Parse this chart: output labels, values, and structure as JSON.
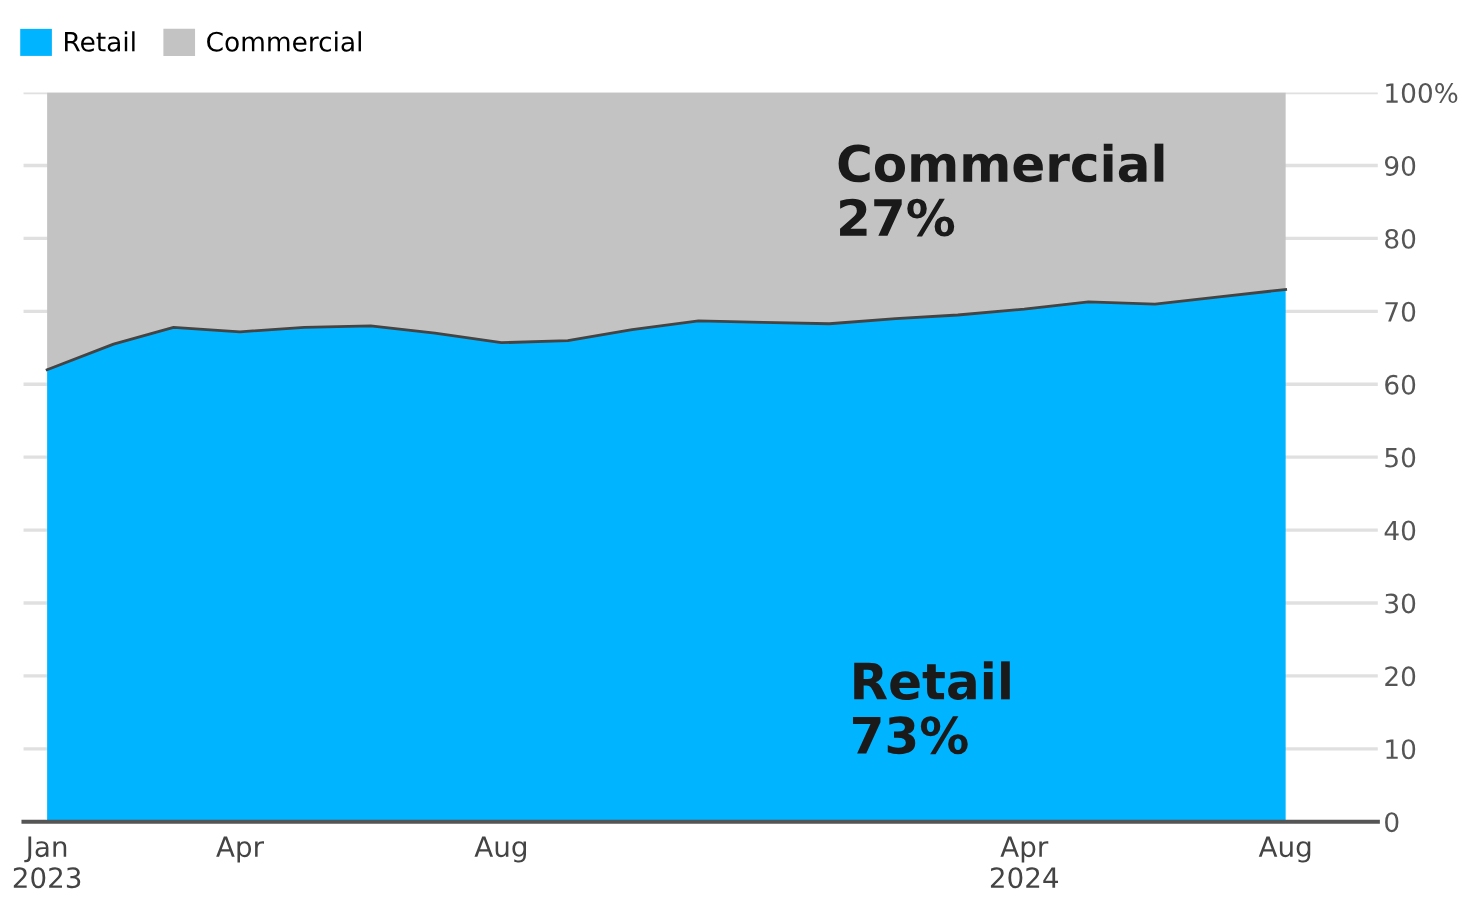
{
  "chart_data": {
    "type": "area",
    "stacked": true,
    "x": [
      "2023-01",
      "2023-02",
      "2023-03",
      "2023-04",
      "2023-05",
      "2023-06",
      "2023-07",
      "2023-08",
      "2023-09",
      "2023-10",
      "2023-11",
      "2023-12",
      "2024-01",
      "2024-02",
      "2024-03",
      "2024-04",
      "2024-05",
      "2024-06",
      "2024-07",
      "2024-08"
    ],
    "series": [
      {
        "name": "Retail",
        "color": "#00b4ff",
        "values": [
          62,
          65.5,
          67.8,
          67.2,
          67.8,
          68,
          67,
          65.7,
          66,
          67.5,
          68.7,
          68.5,
          68.3,
          69,
          69.5,
          70.3,
          71.3,
          71,
          72,
          73
        ]
      },
      {
        "name": "Commercial",
        "color": "#c3c3c3",
        "values": [
          38,
          34.5,
          32.2,
          32.8,
          32.2,
          32,
          33,
          34.3,
          34,
          32.5,
          31.3,
          31.5,
          31.7,
          31,
          30.5,
          29.7,
          28.7,
          29,
          28,
          27
        ]
      }
    ],
    "xlim": [
      "2022-12-21",
      "2024-09-13"
    ],
    "xticks": [
      {
        "value": "2023-01",
        "label": "Jan\n2023"
      },
      {
        "value": "2023-04",
        "label": "Apr"
      },
      {
        "value": "2023-08",
        "label": "Aug"
      },
      {
        "value": "2024-04",
        "label": "Apr\n2024"
      },
      {
        "value": "2024-08",
        "label": "Aug"
      }
    ],
    "ylim": [
      0,
      100
    ],
    "yticks": [
      0,
      10,
      20,
      30,
      40,
      50,
      60,
      70,
      80,
      90,
      {
        "value": 100,
        "label": "100%"
      }
    ],
    "grid": "y",
    "legend": "top left",
    "annotations": [
      "Commercial\n27%",
      "Retail\n73%"
    ]
  }
}
